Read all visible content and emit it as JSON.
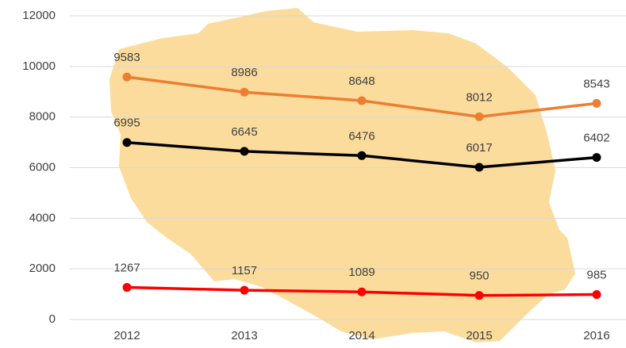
{
  "chart_data": {
    "type": "line",
    "categories": [
      "2012",
      "2013",
      "2014",
      "2015",
      "2016"
    ],
    "series": [
      {
        "color": "#ed7d31",
        "values": [
          9583,
          8986,
          8648,
          8012,
          8543
        ]
      },
      {
        "color": "#000000",
        "values": [
          6995,
          6645,
          6476,
          6017,
          6402
        ]
      },
      {
        "color": "#ff0000",
        "values": [
          1267,
          1157,
          1089,
          950,
          985
        ]
      }
    ],
    "ylim": [
      0,
      12000
    ],
    "yticks": [
      0,
      2000,
      4000,
      6000,
      8000,
      10000,
      12000
    ],
    "grid": true
  }
}
